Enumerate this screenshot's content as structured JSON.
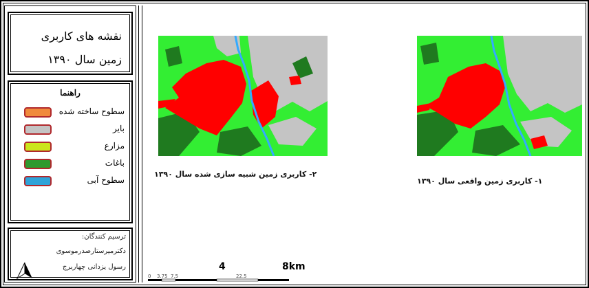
{
  "title_lines": [
    "نقشه های کاربری",
    "زمین سال ۱۳۹۰"
  ],
  "legend": {
    "title": "راهنما",
    "items": [
      {
        "label": "سطوح ساخته شده",
        "color": "#f08a3c"
      },
      {
        "label": "بایر",
        "color": "#c4c4c4"
      },
      {
        "label": "مزارع",
        "color": "#cbe51c"
      },
      {
        "label": "باغات",
        "color": "#2e9a2e"
      },
      {
        "label": "سطوح آبی",
        "color": "#2fa3d8"
      }
    ]
  },
  "credits": {
    "heading": "ترسیم کنندگان:",
    "names": [
      "دکترمیرستارصدرموسوی",
      "رسول یزدانی چهاربرج"
    ]
  },
  "maps": [
    {
      "caption": "۲- کاربری زمین شبیه سازی شده سال ۱۳۹۰"
    },
    {
      "caption": "۱- کاربری زمین واقعی سال ۱۳۹۰"
    }
  ],
  "scale_bar": {
    "big_labels": [
      "4",
      "8km"
    ],
    "small_labels": [
      "0",
      "3.75",
      "7.5",
      "22.5"
    ]
  },
  "map_colors": {
    "built": "#ff0000",
    "barren": "#c4c4c4",
    "farms": "#33ee33",
    "orchards": "#1f7a1f",
    "water": "#33aaff"
  }
}
